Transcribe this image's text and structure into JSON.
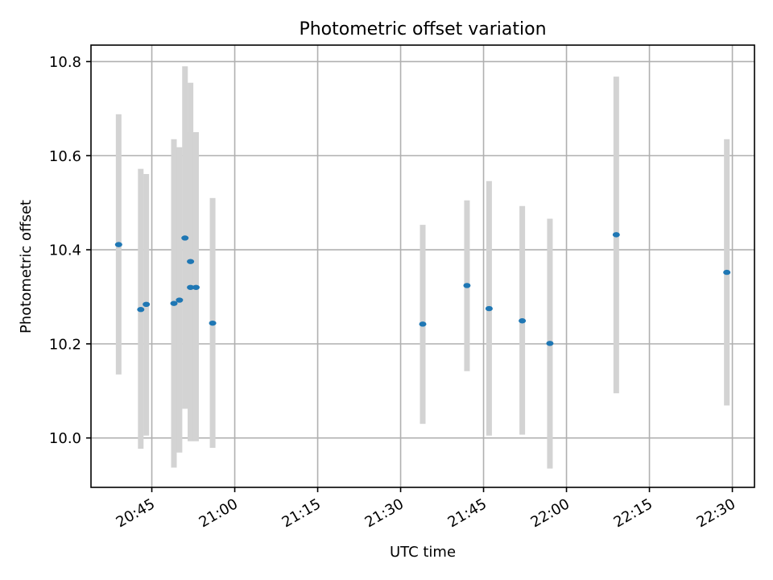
{
  "chart_data": {
    "type": "scatter",
    "title": "Photometric offset variation",
    "xlabel": "UTC time",
    "ylabel": "Photometric offset",
    "x_tick_labels": [
      "20:45",
      "21:00",
      "21:15",
      "21:30",
      "21:45",
      "22:00",
      "22:15",
      "22:30"
    ],
    "y_tick_labels": [
      "10.0",
      "10.2",
      "10.4",
      "10.6",
      "10.8"
    ],
    "x_ticks": [
      "20:45",
      "21:00",
      "21:15",
      "21:30",
      "21:45",
      "22:00",
      "22:15",
      "22:30"
    ],
    "y_ticks": [
      10.0,
      10.2,
      10.4,
      10.6,
      10.8
    ],
    "xlim": [
      "20:34",
      "22:34"
    ],
    "ylim": [
      9.895,
      10.835
    ],
    "grid": true,
    "error_bar_color": "#d3d3d3",
    "point_color": "#1f77b4",
    "points": [
      {
        "x": "20:39",
        "y": 10.411,
        "ylow": 10.135,
        "yhigh": 10.688
      },
      {
        "x": "20:43",
        "y": 10.273,
        "ylow": 9.977,
        "yhigh": 10.572
      },
      {
        "x": "20:44",
        "y": 10.284,
        "ylow": 10.005,
        "yhigh": 10.561
      },
      {
        "x": "20:49",
        "y": 10.286,
        "ylow": 9.937,
        "yhigh": 10.635
      },
      {
        "x": "20:50",
        "y": 10.293,
        "ylow": 9.969,
        "yhigh": 10.618
      },
      {
        "x": "20:51",
        "y": 10.425,
        "ylow": 10.062,
        "yhigh": 10.79
      },
      {
        "x": "20:52",
        "y": 10.375,
        "ylow": 9.994,
        "yhigh": 10.755
      },
      {
        "x": "20:52",
        "y": 10.32,
        "ylow": 9.993,
        "yhigh": 10.65
      },
      {
        "x": "20:53",
        "y": 10.32,
        "ylow": 9.993,
        "yhigh": 10.65
      },
      {
        "x": "20:56",
        "y": 10.244,
        "ylow": 9.979,
        "yhigh": 10.51
      },
      {
        "x": "21:34",
        "y": 10.242,
        "ylow": 10.03,
        "yhigh": 10.453
      },
      {
        "x": "21:42",
        "y": 10.324,
        "ylow": 10.142,
        "yhigh": 10.505
      },
      {
        "x": "21:46",
        "y": 10.275,
        "ylow": 10.005,
        "yhigh": 10.546
      },
      {
        "x": "21:52",
        "y": 10.249,
        "ylow": 10.007,
        "yhigh": 10.493
      },
      {
        "x": "21:57",
        "y": 10.201,
        "ylow": 9.935,
        "yhigh": 10.466
      },
      {
        "x": "22:09",
        "y": 10.432,
        "ylow": 10.095,
        "yhigh": 10.768
      },
      {
        "x": "22:29",
        "y": 10.352,
        "ylow": 10.069,
        "yhigh": 10.635
      }
    ]
  }
}
